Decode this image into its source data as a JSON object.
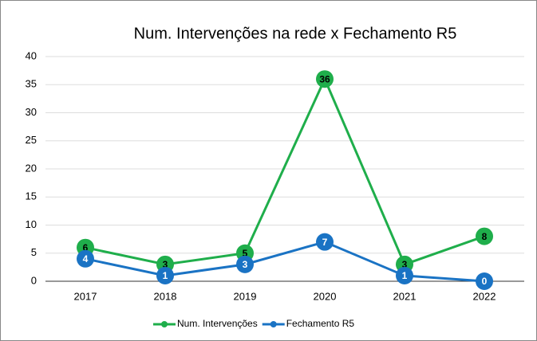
{
  "chart_data": {
    "type": "line",
    "title": "Num. Intervenções na rede x Fechamento R5",
    "categories": [
      "2017",
      "2018",
      "2019",
      "2020",
      "2021",
      "2022"
    ],
    "series": [
      {
        "name": "Num. Intervenções",
        "color": "#1fae4b",
        "values": [
          6,
          3,
          5,
          36,
          3,
          8
        ]
      },
      {
        "name": "Fechamento R5",
        "color": "#1a73c4",
        "values": [
          4,
          1,
          3,
          7,
          1,
          0
        ]
      }
    ],
    "ylim": [
      0,
      40
    ],
    "yticks": [
      0,
      5,
      10,
      15,
      20,
      25,
      30,
      35,
      40
    ],
    "grid": true,
    "legend": "bottom"
  }
}
